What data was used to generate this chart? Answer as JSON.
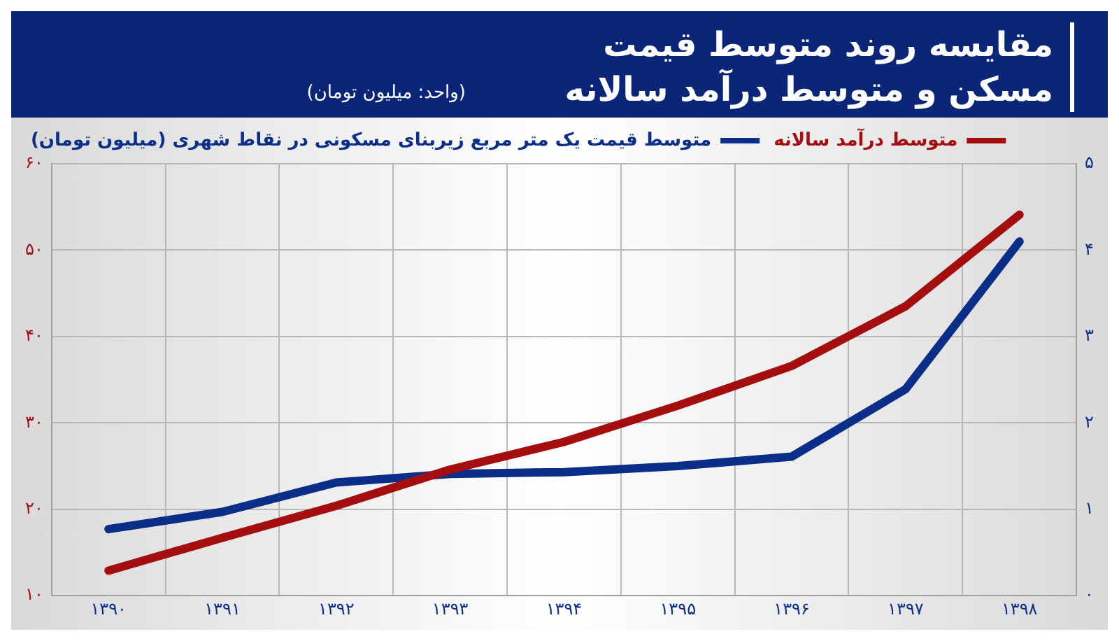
{
  "chart_data": {
    "type": "line",
    "title": "مقایسه روند متوسط قیمت مسکن و متوسط درآمد سالانه",
    "subtitle": "(واحد: میلیون تومان)",
    "categories": [
      "۱۳۹۰",
      "۱۳۹۱",
      "۱۳۹۲",
      "۱۳۹۳",
      "۱۳۹۴",
      "۱۳۹۵",
      "۱۳۹۶",
      "۱۳۹۷",
      "۱۳۹۸"
    ],
    "series": [
      {
        "name": "متوسط درآمد سالانه",
        "color": "#a50e0e",
        "values": [
          12.9,
          16.7,
          20.4,
          24.6,
          27.8,
          32.0,
          36.6,
          43.5,
          54.1
        ]
      },
      {
        "name": "متوسط قیمت یک متر مربع زیربنای مسکونی در نقاط شهری (میلیون تومان)",
        "color": "#0b2f88",
        "axis": "y2",
        "values": [
          0.77,
          0.97,
          1.31,
          1.41,
          1.43,
          1.5,
          1.61,
          2.39,
          4.1
        ]
      }
    ],
    "ylim": [
      10,
      60
    ],
    "yticks": [
      {
        "value": 10,
        "label": "۱۰"
      },
      {
        "value": 20,
        "label": "۲۰"
      },
      {
        "value": 30,
        "label": "۳۰"
      },
      {
        "value": 40,
        "label": "۴۰"
      },
      {
        "value": 50,
        "label": "۵۰"
      },
      {
        "value": 60,
        "label": "۶۰"
      }
    ],
    "y2lim": [
      0,
      5
    ],
    "y2ticks": [
      {
        "value": 0,
        "label": "۰"
      },
      {
        "value": 1,
        "label": "۱"
      },
      {
        "value": 2,
        "label": "۲"
      },
      {
        "value": 3,
        "label": "۳"
      },
      {
        "value": 4,
        "label": "۴"
      },
      {
        "value": 5,
        "label": "۵"
      }
    ],
    "grid": true,
    "legend": "top right",
    "marker": "none",
    "line_style": "solid"
  }
}
